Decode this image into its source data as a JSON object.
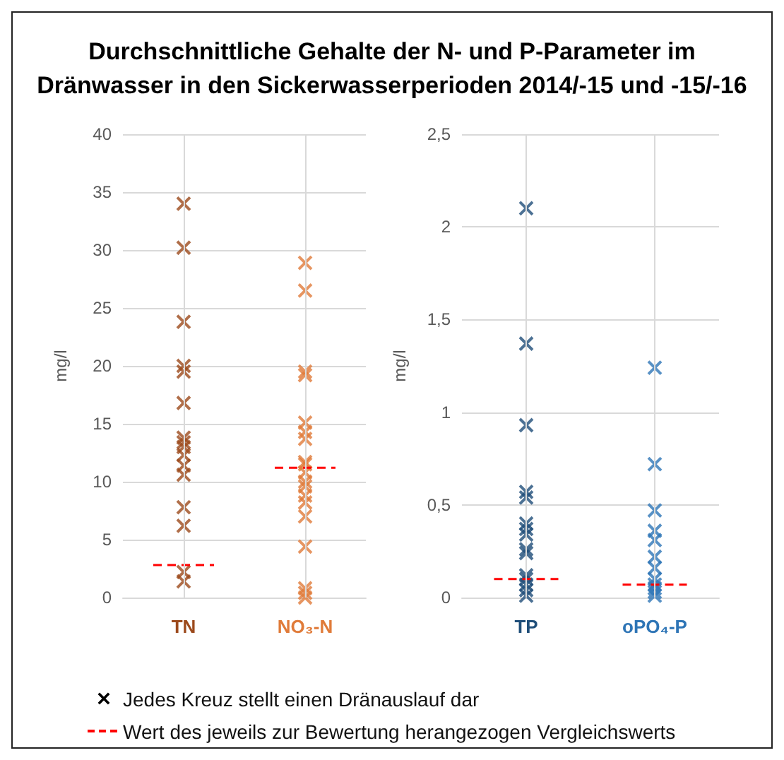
{
  "chart_data": [
    {
      "type": "scatter",
      "title": "Durchschnittliche Gehalte der N- und P-Parameter im Dränwasser in den Sickerwasserperioden 2014/-15 und -15/-16",
      "ylabel": "mg/l",
      "categories": [
        "TN",
        "NO₃-N"
      ],
      "ylim": [
        0,
        40
      ],
      "yticks": [
        0,
        5,
        10,
        15,
        20,
        25,
        30,
        35,
        40
      ],
      "grid": true,
      "marker": "cross",
      "series": [
        {
          "color": "#9c4a1c",
          "x": [
            "TN",
            "TN",
            "TN",
            "TN",
            "TN",
            "TN",
            "TN",
            "TN",
            "TN",
            "TN",
            "TN",
            "TN",
            "TN",
            "TN",
            "TN",
            "TN"
          ],
          "values": [
            34,
            30.2,
            23.8,
            20,
            19.5,
            16.8,
            13.8,
            13.4,
            13,
            12.3,
            11.4,
            10.6,
            7.8,
            6.2,
            2.2,
            1.4
          ]
        },
        {
          "color": "#e07b39",
          "x": [
            "NO₃-N",
            "NO₃-N",
            "NO₃-N",
            "NO₃-N",
            "NO₃-N",
            "NO₃-N",
            "NO₃-N",
            "NO₃-N",
            "NO₃-N",
            "NO₃-N",
            "NO₃-N",
            "NO₃-N",
            "NO₃-N",
            "NO₃-N",
            "NO₃-N",
            "NO₃-N",
            "NO₃-N",
            "NO₃-N",
            "NO₃-N"
          ],
          "values": [
            28.9,
            26.5,
            19.5,
            19.2,
            15.1,
            14.3,
            13.7,
            11.7,
            11.5,
            10.8,
            10,
            9.6,
            8.8,
            8.2,
            7,
            4.4,
            0.8,
            0.4,
            0
          ]
        }
      ],
      "ref_lines": [
        {
          "axis": "y",
          "value": 2.8,
          "color": "#ff0000",
          "line_style": "dashed"
        },
        {
          "axis": "y",
          "value": 11.2,
          "color": "#ff0000",
          "line_style": "dashed"
        }
      ],
      "annotations": [
        "Jedes Kreuz stellt einen Dränauslauf dar",
        "Wert des jeweils zur Bewertung herangezogen Vergleichswerts"
      ]
    },
    {
      "type": "scatter",
      "ylabel": "mg/l",
      "categories": [
        "TP",
        "oPO₄-P"
      ],
      "ylim": [
        0,
        2.5
      ],
      "yticks": [
        0,
        {
          "value": 0.5,
          "label": "0,5"
        },
        1,
        {
          "value": 1.5,
          "label": "1,5"
        },
        2,
        {
          "value": 2.5,
          "label": "2,5"
        }
      ],
      "grid": true,
      "marker": "cross",
      "series": [
        {
          "color": "#1f4e79",
          "x": [
            "TP",
            "TP",
            "TP",
            "TP",
            "TP",
            "TP",
            "TP",
            "TP",
            "TP",
            "TP",
            "TP",
            "TP",
            "TP",
            "TP",
            "TP"
          ],
          "values": [
            2.1,
            1.37,
            0.93,
            0.57,
            0.54,
            0.4,
            0.37,
            0.34,
            0.26,
            0.24,
            0.12,
            0.1,
            0.07,
            0.04,
            0.01
          ]
        },
        {
          "color": "#2e75b6",
          "x": [
            "oPO₄-P",
            "oPO₄-P",
            "oPO₄-P",
            "oPO₄-P",
            "oPO₄-P",
            "oPO₄-P",
            "oPO₄-P",
            "oPO₄-P",
            "oPO₄-P",
            "oPO₄-P",
            "oPO₄-P",
            "oPO₄-P"
          ],
          "values": [
            1.24,
            0.72,
            0.47,
            0.36,
            0.31,
            0.22,
            0.16,
            0.1,
            0.07,
            0.05,
            0.03,
            0.01
          ]
        }
      ],
      "ref_lines": [
        {
          "axis": "y",
          "value": 0.1,
          "color": "#ff0000",
          "line_style": "dashed"
        },
        {
          "axis": "y",
          "value": 0.07,
          "color": "#ff0000",
          "line_style": "dashed"
        }
      ]
    }
  ]
}
